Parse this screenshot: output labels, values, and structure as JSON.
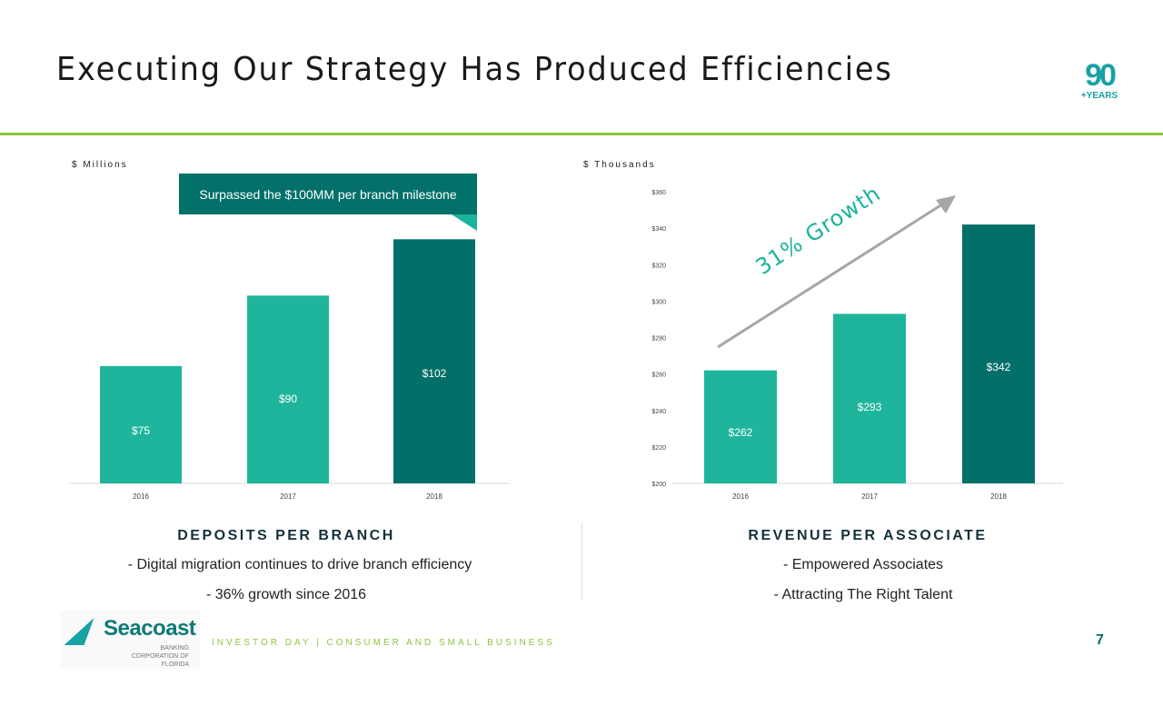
{
  "header": {
    "title": "Executing Our Strategy Has Produced Efficiencies",
    "logo_text": "90 +YEARS"
  },
  "colors": {
    "light": "#1fb59c",
    "dark": "#036f69",
    "accent": "#8dc63f"
  },
  "callout": "Surpassed the $100MM  per branch milestone",
  "growth_annotation": "31% Growth",
  "chart_data": [
    {
      "type": "bar",
      "unit_label": "$ Millions",
      "title": "DEPOSITS PER BRANCH",
      "categories": [
        "2016",
        "2017",
        "2018"
      ],
      "values": [
        75,
        90,
        102
      ],
      "data_labels": [
        "$75",
        "$90",
        "$102"
      ],
      "ylim": [
        50,
        110
      ],
      "grid": false,
      "highlight_index": 2
    },
    {
      "type": "bar",
      "unit_label": "$ Thousands",
      "title": "REVENUE PER ASSOCIATE",
      "categories": [
        "2016",
        "2017",
        "2018"
      ],
      "values": [
        262,
        293,
        342
      ],
      "data_labels": [
        "$262",
        "$293",
        "$342"
      ],
      "ylim": [
        200,
        360
      ],
      "yticks": [
        "$200",
        "$220",
        "$240",
        "$260",
        "$280",
        "$300",
        "$320",
        "$340",
        "$360"
      ],
      "grid": false,
      "highlight_index": 2
    }
  ],
  "left_bullets": [
    "-   Digital migration continues to drive branch efficiency",
    "-   36% growth since 2016"
  ],
  "right_bullets": [
    "-   Empowered Associates",
    "-   Attracting The Right Talent"
  ],
  "footer": {
    "brand": "Seacoast",
    "brand_sub": "BANKING CORPORATION OF FLORIDA",
    "text": "INVESTOR DAY | CONSUMER AND SMALL BUSINESS",
    "page": "7"
  }
}
